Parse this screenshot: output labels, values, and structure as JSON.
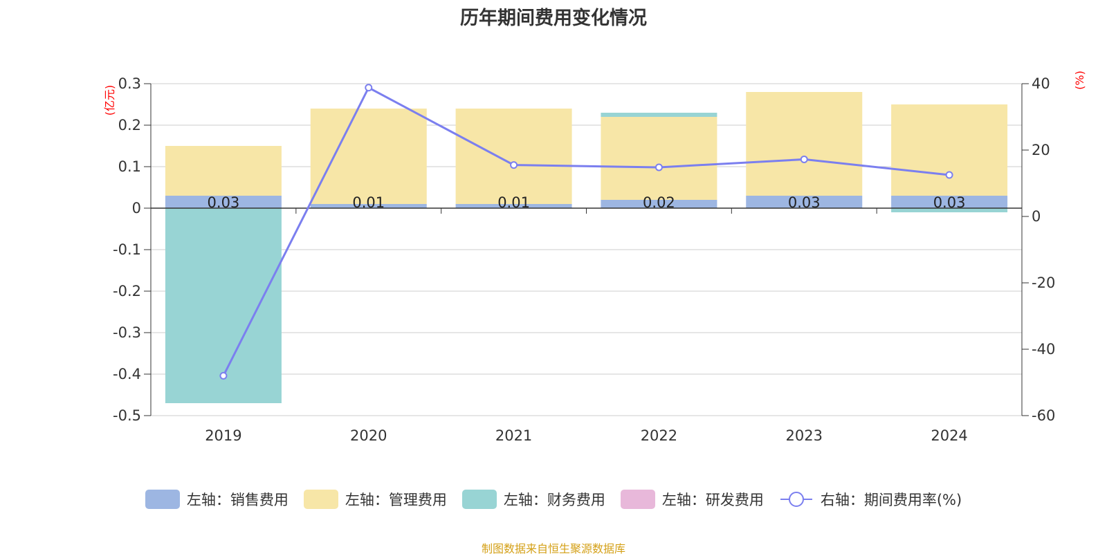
{
  "chart_data": {
    "type": "bar",
    "title": "历年期间费用变化情况",
    "categories": [
      "2019",
      "2020",
      "2021",
      "2022",
      "2023",
      "2024"
    ],
    "left_axis": {
      "unit": "(亿元)",
      "ylim": [
        -0.5,
        0.3
      ],
      "ticks": [
        "0.3",
        "0.2",
        "0.1",
        "0",
        "-0.1",
        "-0.2",
        "-0.3",
        "-0.4",
        "-0.5"
      ]
    },
    "right_axis": {
      "unit": "(%)",
      "ylim": [
        -60,
        40
      ],
      "ticks": [
        "40",
        "20",
        "0",
        "-20",
        "-40",
        "-60"
      ]
    },
    "series": [
      {
        "name": "左轴：销售费用",
        "axis": "left",
        "color": "#9db6e2",
        "values": [
          0.03,
          0.01,
          0.01,
          0.02,
          0.03,
          0.03
        ]
      },
      {
        "name": "左轴：管理费用",
        "axis": "left",
        "color": "#f7e6a7",
        "values": [
          0.12,
          0.23,
          0.23,
          0.2,
          0.25,
          0.22
        ]
      },
      {
        "name": "左轴：财务费用",
        "axis": "left",
        "color": "#98d4d4",
        "values": [
          -0.47,
          0,
          0,
          0.01,
          0,
          -0.01
        ]
      },
      {
        "name": "左轴：研发费用",
        "axis": "left",
        "color": "#e8b8da",
        "values": [
          0,
          0,
          0,
          0,
          0,
          0
        ]
      },
      {
        "name": "右轴：期间费用率(%)",
        "axis": "right",
        "type": "line",
        "color": "#7b7fef",
        "values": [
          -48.0,
          38.8,
          15.5,
          14.8,
          17.2,
          12.5
        ]
      }
    ],
    "data_labels": [
      "0.03",
      "0.01",
      "0.01",
      "0.02",
      "0.03",
      "0.03"
    ],
    "grid": true,
    "legend": "bottom"
  },
  "source": "制图数据来自恒生聚源数据库"
}
